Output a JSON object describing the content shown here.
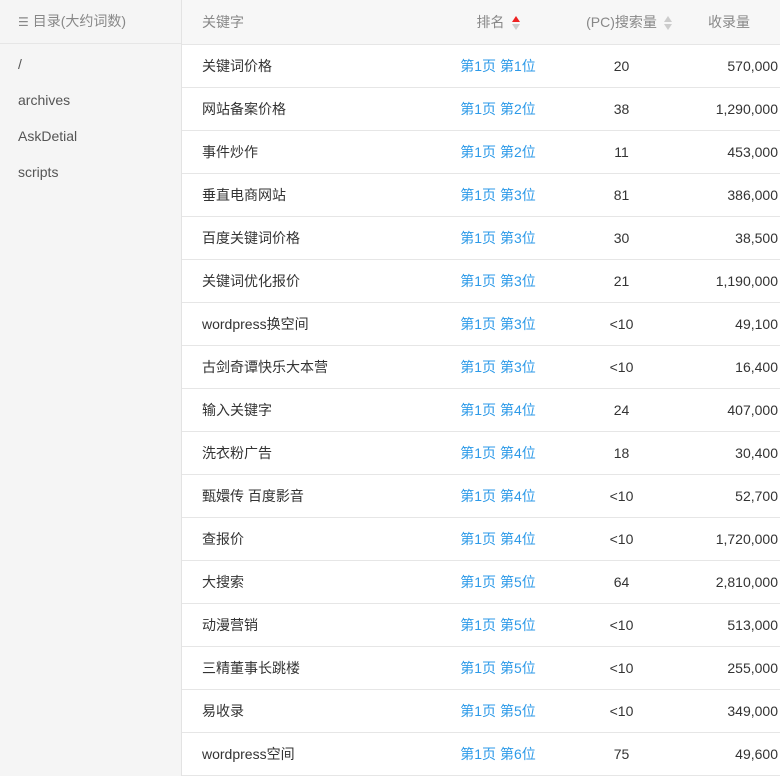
{
  "sidebar": {
    "title": "目录(大约词数)",
    "items": [
      "/",
      "archives",
      "AskDetial",
      "scripts"
    ]
  },
  "table": {
    "headers": {
      "keyword": "关键字",
      "rank": "排名",
      "search": "(PC)搜索量",
      "indexed": "收录量"
    },
    "sort": {
      "column": "rank",
      "direction": "ascending",
      "active_color": "#e22222"
    },
    "rows": [
      {
        "keyword": "关键词价格",
        "rank": "第1页 第1位",
        "search": "20",
        "indexed": "570,000"
      },
      {
        "keyword": "网站备案价格",
        "rank": "第1页 第2位",
        "search": "38",
        "indexed": "1,290,000"
      },
      {
        "keyword": "事件炒作",
        "rank": "第1页 第2位",
        "search": "11",
        "indexed": "453,000"
      },
      {
        "keyword": "垂直电商网站",
        "rank": "第1页 第3位",
        "search": "81",
        "indexed": "386,000"
      },
      {
        "keyword": "百度关键词价格",
        "rank": "第1页 第3位",
        "search": "30",
        "indexed": "38,500"
      },
      {
        "keyword": "关键词优化报价",
        "rank": "第1页 第3位",
        "search": "21",
        "indexed": "1,190,000"
      },
      {
        "keyword": "wordpress换空间",
        "rank": "第1页 第3位",
        "search": "<10",
        "indexed": "49,100"
      },
      {
        "keyword": "古剑奇谭快乐大本营",
        "rank": "第1页 第3位",
        "search": "<10",
        "indexed": "16,400"
      },
      {
        "keyword": "输入关键字",
        "rank": "第1页 第4位",
        "search": "24",
        "indexed": "407,000"
      },
      {
        "keyword": "洗衣粉广告",
        "rank": "第1页 第4位",
        "search": "18",
        "indexed": "30,400"
      },
      {
        "keyword": "甄嬛传 百度影音",
        "rank": "第1页 第4位",
        "search": "<10",
        "indexed": "52,700"
      },
      {
        "keyword": "查报价",
        "rank": "第1页 第4位",
        "search": "<10",
        "indexed": "1,720,000"
      },
      {
        "keyword": "大搜索",
        "rank": "第1页 第5位",
        "search": "64",
        "indexed": "2,810,000"
      },
      {
        "keyword": "动漫营销",
        "rank": "第1页 第5位",
        "search": "<10",
        "indexed": "513,000"
      },
      {
        "keyword": "三精董事长跳楼",
        "rank": "第1页 第5位",
        "search": "<10",
        "indexed": "255,000"
      },
      {
        "keyword": "易收录",
        "rank": "第1页 第5位",
        "search": "<10",
        "indexed": "349,000"
      },
      {
        "keyword": "wordpress空间",
        "rank": "第1页 第6位",
        "search": "75",
        "indexed": "49,600"
      }
    ]
  }
}
